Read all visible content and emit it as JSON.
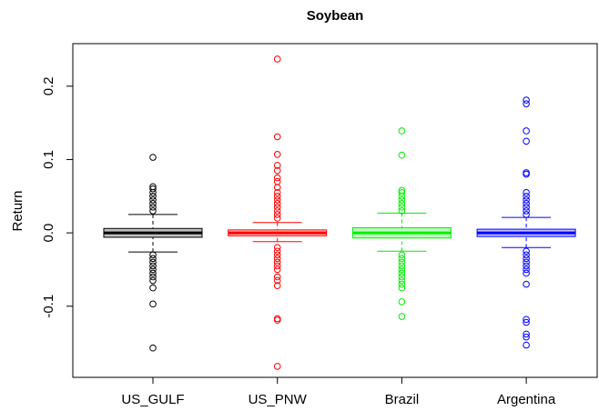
{
  "chart_data": {
    "type": "box",
    "title": "Soybean",
    "y_label": "Return",
    "ylim": [
      -0.197,
      0.258
    ],
    "yticks": [
      -0.1,
      {
        "value": 0,
        "label": "0.0"
      },
      0.1,
      0.2
    ],
    "categories": [
      "US_GULF",
      "US_PNW",
      "Brazil",
      "Argentina"
    ],
    "series": [
      {
        "name": "US_GULF",
        "color": "#000000",
        "whisker_low": -0.026,
        "q1": -0.006,
        "median": 0,
        "q3": 0.006,
        "whisker_high": 0.025,
        "outliers": [
          0.103,
          0.063,
          0.06,
          0.055,
          0.05,
          0.045,
          0.04,
          0.035,
          0.03,
          -0.03,
          -0.035,
          -0.04,
          -0.045,
          -0.05,
          -0.055,
          -0.06,
          -0.065,
          -0.075,
          -0.097,
          -0.157
        ]
      },
      {
        "name": "US_PNW",
        "color": "#ff0000",
        "whisker_low": -0.012,
        "q1": -0.004,
        "median": 0,
        "q3": 0.004,
        "whisker_high": 0.014,
        "outliers": [
          0.237,
          0.131,
          0.107,
          0.092,
          0.085,
          0.075,
          0.07,
          0.062,
          0.055,
          0.05,
          0.045,
          0.04,
          0.035,
          0.03,
          0.025,
          0.02,
          -0.02,
          -0.025,
          -0.03,
          -0.035,
          -0.04,
          -0.045,
          -0.05,
          -0.06,
          -0.065,
          -0.072,
          -0.117,
          -0.119,
          -0.182
        ]
      },
      {
        "name": "Brazil",
        "color": "#00ee00",
        "whisker_low": -0.025,
        "q1": -0.007,
        "median": 0,
        "q3": 0.007,
        "whisker_high": 0.027,
        "outliers": [
          0.139,
          0.106,
          0.058,
          0.055,
          0.05,
          0.045,
          0.04,
          0.035,
          0.03,
          -0.03,
          -0.035,
          -0.04,
          -0.045,
          -0.05,
          -0.055,
          -0.06,
          -0.065,
          -0.07,
          -0.075,
          -0.094,
          -0.114
        ]
      },
      {
        "name": "Argentina",
        "color": "#0000ff",
        "whisker_low": -0.02,
        "q1": -0.005,
        "median": 0,
        "q3": 0.005,
        "whisker_high": 0.021,
        "outliers": [
          0.181,
          0.176,
          0.139,
          0.125,
          0.082,
          0.08,
          0.055,
          0.05,
          0.045,
          0.04,
          0.035,
          0.03,
          0.025,
          -0.025,
          -0.03,
          -0.035,
          -0.04,
          -0.045,
          -0.05,
          -0.055,
          -0.07,
          -0.118,
          -0.122,
          -0.138,
          -0.142,
          -0.153
        ]
      }
    ]
  }
}
